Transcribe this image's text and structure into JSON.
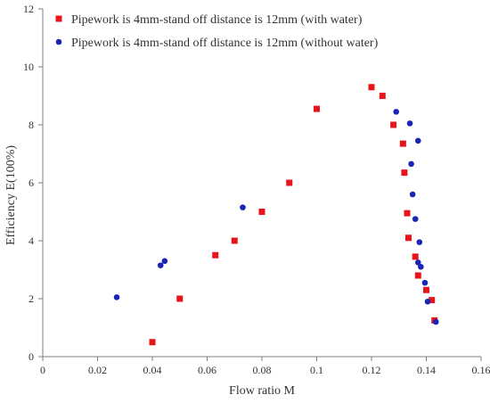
{
  "chart_data": {
    "type": "scatter",
    "title": "",
    "xlabel": "Flow ratio M",
    "ylabel": "Efficiency E(100%)",
    "xlim": [
      0,
      0.16
    ],
    "ylim": [
      0,
      12
    ],
    "x_ticks": [
      "0",
      "0.02",
      "0.04",
      "0.06",
      "0.08",
      "0.1",
      "0.12",
      "0.14",
      "0.16"
    ],
    "y_ticks": [
      "0",
      "2",
      "4",
      "6",
      "8",
      "10",
      "12"
    ],
    "grid": false,
    "legend_position": "top-left",
    "series": [
      {
        "name": "Pipework is 4mm-stand off distance is 12mm (with water)",
        "marker": "square",
        "color": "#e8141b",
        "points": [
          {
            "x": 0.04,
            "y": 0.5
          },
          {
            "x": 0.05,
            "y": 2.0
          },
          {
            "x": 0.063,
            "y": 3.5
          },
          {
            "x": 0.07,
            "y": 4.0
          },
          {
            "x": 0.08,
            "y": 5.0
          },
          {
            "x": 0.09,
            "y": 6.0
          },
          {
            "x": 0.1,
            "y": 8.55
          },
          {
            "x": 0.12,
            "y": 9.3
          },
          {
            "x": 0.124,
            "y": 9.0
          },
          {
            "x": 0.128,
            "y": 8.0
          },
          {
            "x": 0.1315,
            "y": 7.35
          },
          {
            "x": 0.132,
            "y": 6.35
          },
          {
            "x": 0.133,
            "y": 4.95
          },
          {
            "x": 0.1335,
            "y": 4.1
          },
          {
            "x": 0.136,
            "y": 3.45
          },
          {
            "x": 0.137,
            "y": 2.8
          },
          {
            "x": 0.14,
            "y": 2.3
          },
          {
            "x": 0.142,
            "y": 1.95
          },
          {
            "x": 0.143,
            "y": 1.25
          }
        ]
      },
      {
        "name": "Pipework is 4mm-stand off distance is 12mm (without water)",
        "marker": "circle",
        "color": "#1a24b5",
        "points": [
          {
            "x": 0.027,
            "y": 2.05
          },
          {
            "x": 0.043,
            "y": 3.15
          },
          {
            "x": 0.0445,
            "y": 3.3
          },
          {
            "x": 0.073,
            "y": 5.15
          },
          {
            "x": 0.129,
            "y": 8.45
          },
          {
            "x": 0.134,
            "y": 8.05
          },
          {
            "x": 0.137,
            "y": 7.45
          },
          {
            "x": 0.1345,
            "y": 6.65
          },
          {
            "x": 0.135,
            "y": 5.6
          },
          {
            "x": 0.136,
            "y": 4.75
          },
          {
            "x": 0.1375,
            "y": 3.95
          },
          {
            "x": 0.137,
            "y": 3.25
          },
          {
            "x": 0.138,
            "y": 3.1
          },
          {
            "x": 0.1395,
            "y": 2.55
          },
          {
            "x": 0.1405,
            "y": 1.9
          },
          {
            "x": 0.1435,
            "y": 1.2
          }
        ]
      }
    ]
  }
}
